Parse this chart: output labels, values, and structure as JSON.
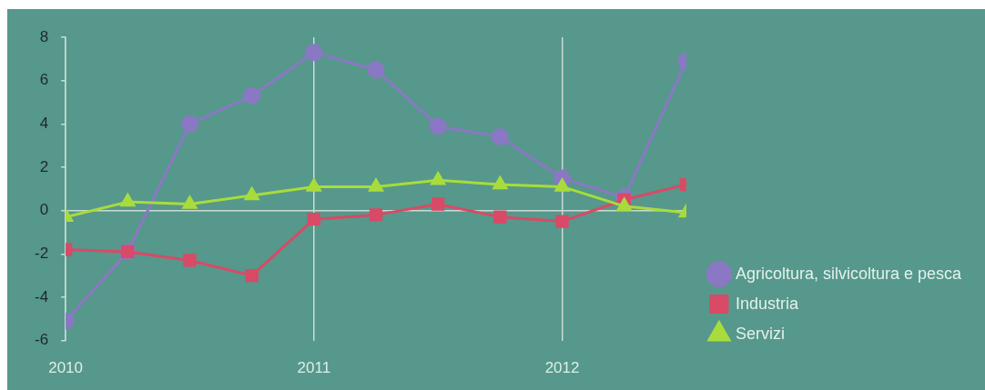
{
  "chart_data": {
    "type": "line",
    "x": [
      2010,
      2010.25,
      2010.5,
      2010.75,
      2011,
      2011.25,
      2011.5,
      2011.75,
      2012,
      2012.25,
      2012.5
    ],
    "xlim": [
      2010,
      2012.5
    ],
    "xticks": [
      2010,
      2011,
      2012
    ],
    "ylim": [
      -6,
      8
    ],
    "yticks": [
      -6,
      -4,
      -2,
      0,
      2,
      4,
      6,
      8
    ],
    "series": [
      {
        "name": "Agricoltura, silvicoltura e pesca",
        "color": "#8a78c4",
        "marker": "circle",
        "values": [
          -5.1,
          -1.9,
          4.0,
          5.3,
          7.3,
          6.5,
          3.9,
          3.4,
          1.5,
          0.6,
          6.9
        ]
      },
      {
        "name": "Industria",
        "color": "#d84a66",
        "marker": "square",
        "values": [
          -1.8,
          -1.9,
          -2.3,
          -3.0,
          -0.4,
          -0.2,
          0.3,
          -0.3,
          -0.5,
          0.5,
          1.2
        ]
      },
      {
        "name": "Servizi",
        "color": "#a8dc3c",
        "marker": "triangle",
        "values": [
          -0.3,
          0.4,
          0.3,
          0.7,
          1.1,
          1.1,
          1.4,
          1.2,
          1.1,
          0.2,
          -0.1
        ]
      }
    ],
    "grid": "x",
    "legend": "bottom right",
    "ref_lines": [
      {
        "axis": "y",
        "value": 0,
        "color": "#c8dcd4"
      }
    ]
  }
}
